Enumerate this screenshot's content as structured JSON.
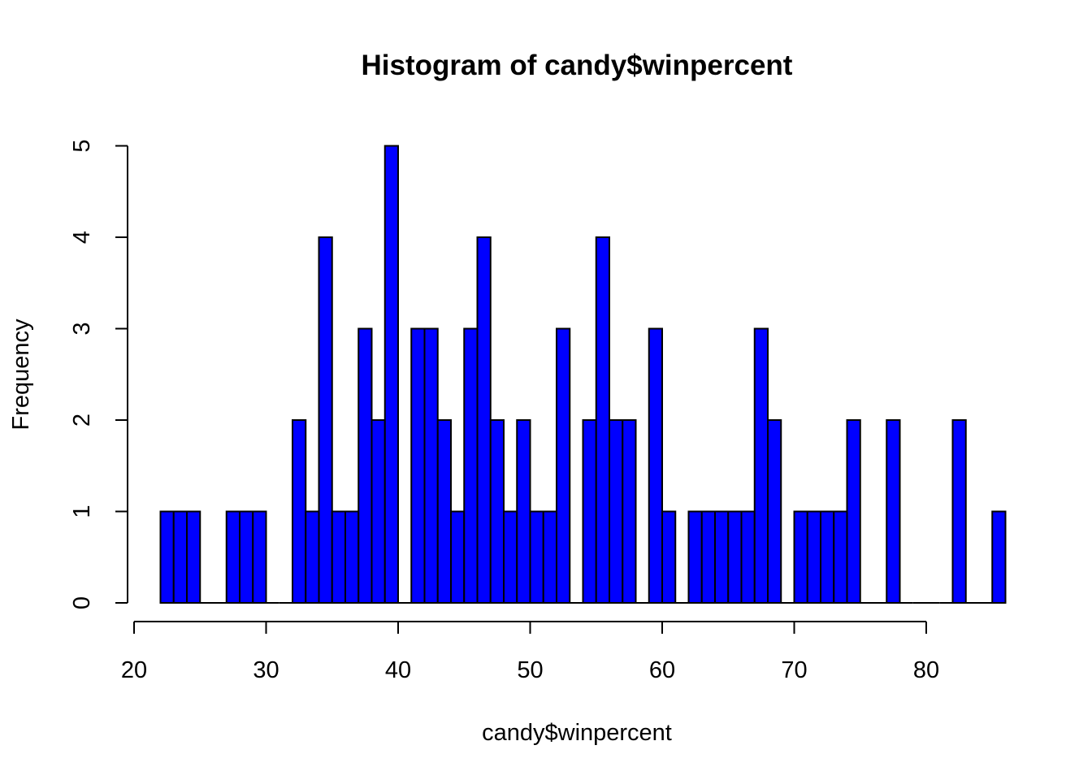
{
  "chart_data": {
    "type": "bar",
    "title": "Histogram of candy$winpercent",
    "xlabel": "candy$winpercent",
    "ylabel": "Frequency",
    "bar_color": "#0000ff",
    "bin_width": 1,
    "bin_start": 22,
    "values": [
      1,
      1,
      1,
      0,
      0,
      1,
      1,
      1,
      0,
      0,
      2,
      1,
      4,
      1,
      1,
      3,
      2,
      5,
      0,
      3,
      3,
      2,
      1,
      3,
      4,
      2,
      1,
      2,
      1,
      1,
      3,
      0,
      2,
      4,
      2,
      2,
      0,
      3,
      1,
      0,
      1,
      1,
      1,
      1,
      1,
      3,
      2,
      0,
      1,
      1,
      1,
      1,
      2,
      0,
      0,
      2,
      0,
      0,
      0,
      0,
      2,
      0,
      0,
      1
    ],
    "xlim": [
      20,
      85
    ],
    "ylim": [
      0,
      5
    ],
    "x_ticks": [
      "20",
      "30",
      "40",
      "50",
      "60",
      "70",
      "80"
    ],
    "y_ticks": [
      "0",
      "1",
      "2",
      "3",
      "4",
      "5"
    ],
    "grid": false,
    "legend": "none"
  }
}
